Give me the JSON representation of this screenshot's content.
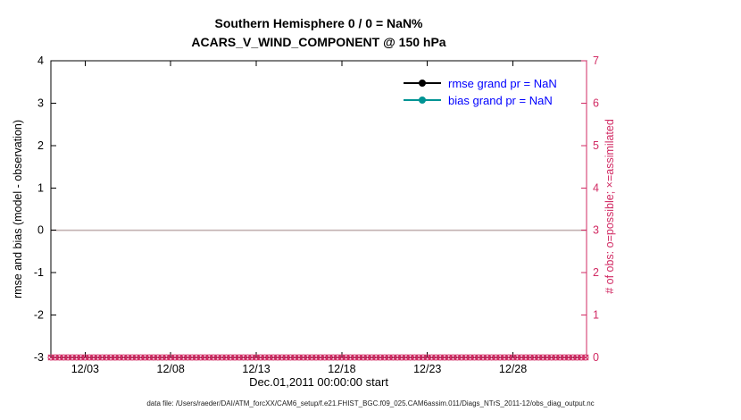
{
  "title": {
    "line1": "Southern Hemisphere 0 / 0 = NaN%",
    "line2": "ACARS_V_WIND_COMPONENT @ 150 hPa"
  },
  "footer": {
    "text": "data file: /Users/raeder/DAI/ATM_forcXX/CAM6_setup/f.e21.FHIST_BGC.f09_025.CAM6assim.011/Diags_NTrS_2011-12/obs_diag_output.nc"
  },
  "colors": {
    "axis": "#000000",
    "obs": "#d12a63",
    "rmse": "#000000",
    "bias": "#009494",
    "legend_text": "#0000ff",
    "zero_line": "#c3b1b1",
    "footer": "#222222"
  },
  "chart_data": {
    "type": "line",
    "title": "Southern Hemisphere 0 / 0 = NaN%",
    "subtitle": "ACARS_V_WIND_COMPONENT @ 150 hPa",
    "x_axis": {
      "label": "Dec.01,2011 00:00:00 start",
      "tick_labels": [
        "12/03",
        "12/08",
        "12/13",
        "12/18",
        "12/23",
        "12/28"
      ],
      "tick_days": [
        3,
        8,
        13,
        18,
        23,
        28
      ],
      "range": [
        1,
        32.3
      ]
    },
    "left_axis": {
      "label": "rmse and bias (model - observation)",
      "ticks": [
        -3,
        -2,
        -1,
        0,
        1,
        2,
        3,
        4
      ],
      "range": [
        -3,
        4
      ]
    },
    "right_axis": {
      "label": "# of obs: o=possible; ×=assimilated",
      "ticks": [
        0,
        1,
        2,
        3,
        4,
        5,
        6,
        7
      ],
      "range": [
        0,
        7
      ]
    },
    "series": [
      {
        "name": "rmse grand pr = NaN",
        "color": "#000000",
        "values": "NaN (no curve plotted)"
      },
      {
        "name": "bias grand pr = NaN",
        "color": "#009494",
        "values": "NaN (no curve plotted)"
      }
    ],
    "obs_markers": {
      "possible_value": 0,
      "assimilated_value": 0,
      "start_day": 1,
      "end_day": 32.25,
      "step_days": 0.25
    },
    "zero_reference_line": 0,
    "grid": false,
    "legend_position": "top-right-inside"
  }
}
